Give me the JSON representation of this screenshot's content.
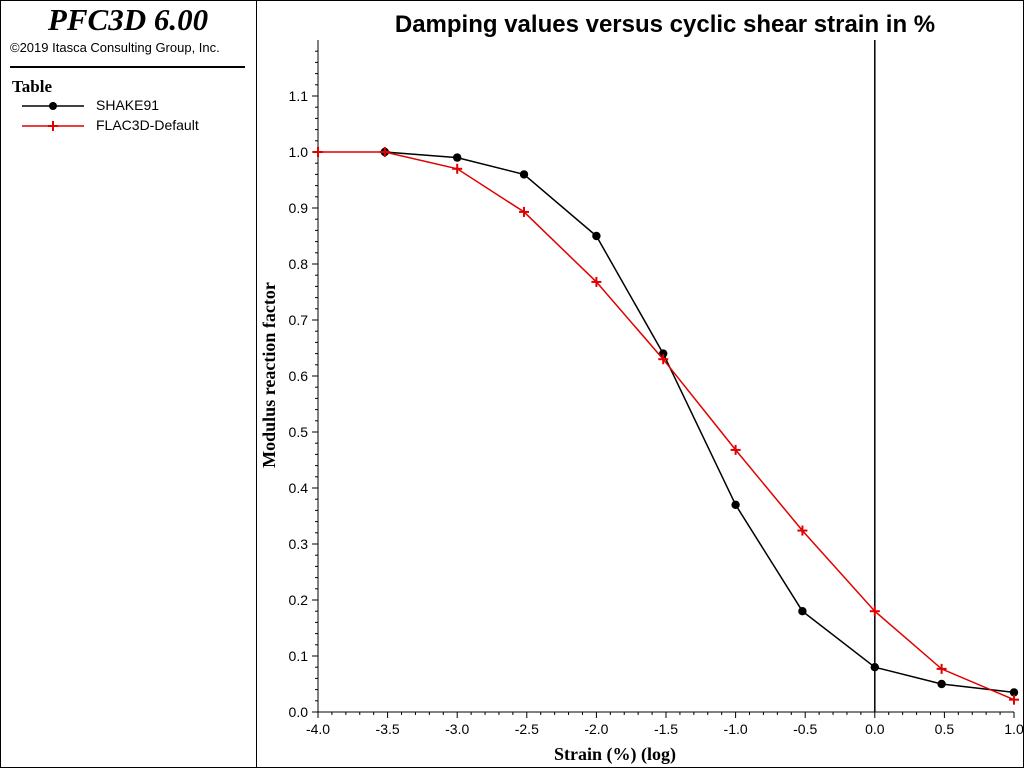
{
  "header": {
    "app_title": "PFC3D 6.00",
    "copyright": "©2019 Itasca Consulting Group, Inc."
  },
  "legend": {
    "title": "Table",
    "items": [
      {
        "label": "SHAKE91",
        "color": "#000000",
        "marker": "circle"
      },
      {
        "label": "FLAC3D-Default",
        "color": "#e00000",
        "marker": "plus"
      }
    ]
  },
  "chart_data": {
    "type": "line",
    "title": "Damping values versus cyclic shear strain in %",
    "xlabel": "Strain (%) (log)",
    "ylabel": "Modulus reaction factor",
    "xlim": [
      -4.0,
      1.0
    ],
    "ylim": [
      0.0,
      1.2
    ],
    "xticks": [
      "-4.0",
      "-3.5",
      "-3.0",
      "-2.5",
      "-2.0",
      "-1.5",
      "-1.0",
      "-0.5",
      "0.0",
      "0.5",
      "1.0"
    ],
    "yticks": [
      "0.0",
      "0.1",
      "0.2",
      "0.3",
      "0.4",
      "0.5",
      "0.6",
      "0.7",
      "0.8",
      "0.9",
      "1.0",
      "1.1"
    ],
    "vertical_line_x": 0.0,
    "series": [
      {
        "name": "SHAKE91",
        "color": "#000000",
        "marker": "circle",
        "x": [
          -3.52,
          -3.0,
          -2.52,
          -2.0,
          -1.52,
          -1.0,
          -0.52,
          0.0,
          0.48,
          1.0
        ],
        "y": [
          1.0,
          0.99,
          0.96,
          0.85,
          0.64,
          0.37,
          0.18,
          0.08,
          0.05,
          0.035
        ]
      },
      {
        "name": "FLAC3D-Default",
        "color": "#e00000",
        "marker": "plus",
        "x": [
          -4.0,
          -3.52,
          -3.0,
          -2.52,
          -2.0,
          -1.52,
          -1.0,
          -0.52,
          0.0,
          0.48,
          1.0
        ],
        "y": [
          1.0,
          1.0,
          0.97,
          0.893,
          0.768,
          0.63,
          0.468,
          0.324,
          0.18,
          0.077,
          0.022
        ]
      }
    ]
  }
}
